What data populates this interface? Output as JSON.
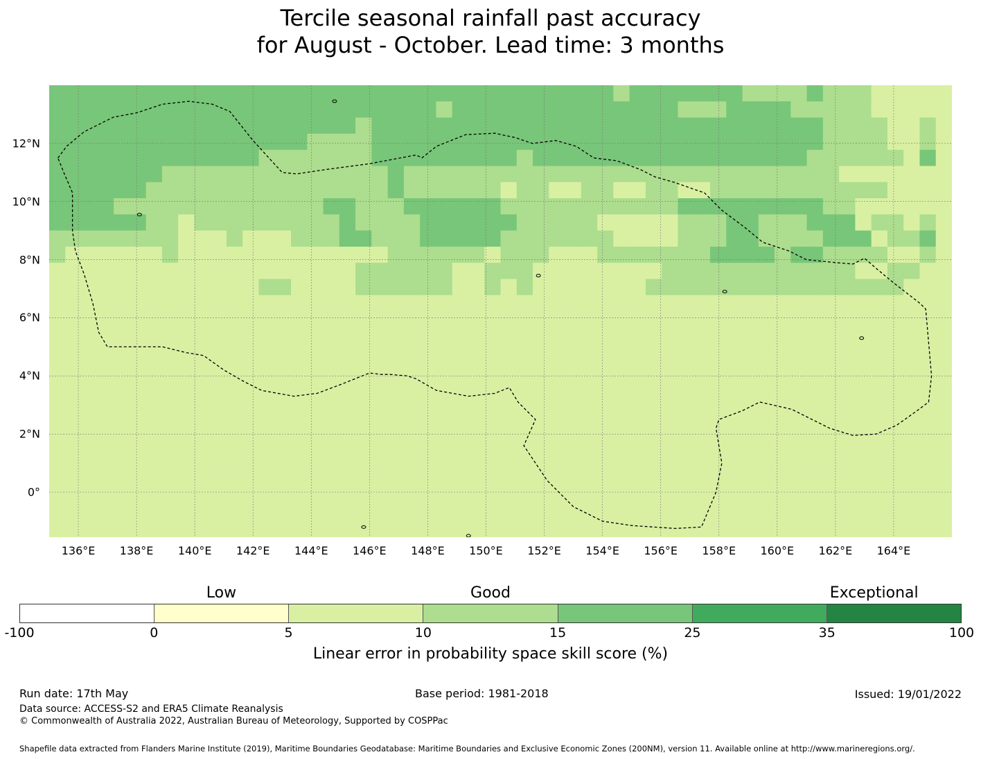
{
  "title": {
    "line1": "Tercile seasonal rainfall past accuracy",
    "line2": "for August - October. Lead time: 3 months"
  },
  "map": {
    "lon_labels": [
      "136°E",
      "138°E",
      "140°E",
      "142°E",
      "144°E",
      "146°E",
      "148°E",
      "150°E",
      "152°E",
      "154°E",
      "156°E",
      "158°E",
      "160°E",
      "162°E",
      "164°E"
    ],
    "lat_labels": [
      "12°N",
      "10°N",
      "8°N",
      "6°N",
      "4°N",
      "2°N",
      "0°"
    ],
    "lon_values": [
      136,
      138,
      140,
      142,
      144,
      146,
      148,
      150,
      152,
      154,
      156,
      158,
      160,
      162,
      164
    ],
    "lat_values": [
      12,
      10,
      8,
      6,
      4,
      2,
      0
    ],
    "extent": {
      "lon_min": 135.0,
      "lon_max": 166.0,
      "lat_min": -1.55,
      "lat_max": 14.0
    },
    "grid_rows": [
      "44444444444444444444444444444444444344444443333433322222",
      "44444444444444444444444434444444444444433344443333322222",
      "44444444444444444443444444444444444444444444444433332232",
      "44444444444444443333444444444444444444444444444433332232",
      "44444444444443333333444444444344444444444444444333333242",
      "44444443333333333333343333333333333333333333333332222222",
      "44444433333333333333343333332332233223322333333333332222",
      "44443333333333333443334444443333333333344444444433222222",
      "44444433233333333343333444444333332222233344333444233232",
      "33333333222322233344333444443333333222233344333344423342",
      "32222223222222222222233333323332223333333444434433332232",
      "22222222222222222223333332233322222222333333333333223322",
      "22222222222223322223333332232322222223333333333333333222",
      "22222222222222222222222222222222222222222222222222222222",
      "22222222222222222222222222222222222222222222222222222222",
      "22222222222222222222222222222222222222222222222222222222",
      "22222222222222222222222222222222222222222222222222222222",
      "22222222222222222222222222222222222222222222222222222222",
      "22222222222222222222222222222222222222222222222222222222",
      "22222222222222222222222222222222222222222222222222222222",
      "22222222222222222222222222222222222222222222222222222222",
      "22222222222222222222222222222222222222222222222222222222",
      "22222222222222222222222222222222222222222222222222222222",
      "22222222222222222222222222222222222222222222222222222222",
      "22222222222222222222222222222222222222222222222222222222",
      "22222222222222222222222222222222222222222222222222222222",
      "22222222222222222222222222222222222222222222222222222222",
      "22222222222222222222222222222222222222222222222222222222"
    ]
  },
  "colorbar": {
    "colors": [
      "#ffffff",
      "#ffffcc",
      "#d9f0a3",
      "#addd8e",
      "#78c679",
      "#41ab5d",
      "#238443"
    ],
    "tick_labels": [
      "-100",
      "0",
      "5",
      "10",
      "15",
      "25",
      "35",
      "100"
    ],
    "categories": [
      {
        "label": "Low",
        "at": 1.5
      },
      {
        "label": "Good",
        "at": 3.5
      },
      {
        "label": "Exceptional",
        "at": 6.35
      }
    ],
    "label": "Linear error in probability space skill score (%)"
  },
  "footer": {
    "run_date": "Run date: 17th May",
    "base_period": "Base period: 1981-2018",
    "issued": "Issued: 19/01/2022",
    "data_source": "Data source: ACCESS-S2 and ERA5 Climate Reanalysis",
    "copyright": "© Commonwealth of Australia 2022, Australian Bureau of Meteorology, Supported by COSPPac",
    "shapefile": "Shapefile data extracted from Flanders Marine Institute (2019), Maritime Boundaries Geodatabase: Maritime Boundaries and Exclusive Economic Zones (200NM), version 11. Available online at http://www.marineregions.org/."
  },
  "eez_boundary": [
    [
      135.3,
      11.5
    ],
    [
      135.6,
      11.9
    ],
    [
      136.2,
      12.4
    ],
    [
      137.2,
      12.9
    ],
    [
      138.0,
      13.05
    ],
    [
      138.9,
      13.35
    ],
    [
      139.8,
      13.45
    ],
    [
      140.6,
      13.35
    ],
    [
      141.2,
      13.1
    ],
    [
      142.0,
      12.1
    ],
    [
      143.0,
      11.0
    ],
    [
      143.5,
      10.95
    ],
    [
      144.5,
      11.1
    ],
    [
      146.0,
      11.3
    ],
    [
      147.6,
      11.6
    ],
    [
      147.8,
      11.5
    ],
    [
      148.3,
      11.9
    ],
    [
      149.3,
      12.3
    ],
    [
      150.3,
      12.35
    ],
    [
      151.0,
      12.2
    ],
    [
      151.6,
      12.0
    ],
    [
      152.4,
      12.1
    ],
    [
      153.1,
      11.9
    ],
    [
      153.7,
      11.5
    ],
    [
      154.5,
      11.4
    ],
    [
      155.3,
      11.1
    ],
    [
      155.8,
      10.85
    ],
    [
      156.5,
      10.65
    ],
    [
      157.2,
      10.4
    ],
    [
      157.5,
      10.3
    ],
    [
      158.1,
      9.7
    ],
    [
      158.9,
      9.1
    ],
    [
      159.5,
      8.6
    ],
    [
      160.4,
      8.3
    ],
    [
      161.0,
      8.0
    ],
    [
      162.0,
      7.9
    ],
    [
      162.6,
      7.85
    ],
    [
      163.0,
      8.05
    ],
    [
      163.4,
      7.7
    ],
    [
      164.0,
      7.2
    ],
    [
      164.9,
      6.5
    ],
    [
      165.1,
      6.3
    ],
    [
      165.3,
      4.0
    ],
    [
      165.2,
      3.1
    ],
    [
      164.8,
      2.8
    ],
    [
      164.1,
      2.3
    ],
    [
      163.4,
      2.0
    ],
    [
      162.6,
      1.95
    ],
    [
      161.8,
      2.2
    ],
    [
      161.0,
      2.6
    ],
    [
      160.5,
      2.85
    ],
    [
      159.4,
      3.1
    ],
    [
      158.8,
      2.8
    ],
    [
      158.0,
      2.5
    ],
    [
      157.9,
      2.2
    ],
    [
      158.1,
      1.0
    ],
    [
      157.9,
      0.0
    ],
    [
      157.4,
      -1.2
    ],
    [
      156.5,
      -1.25
    ],
    [
      155.0,
      -1.15
    ],
    [
      154.0,
      -1.0
    ],
    [
      153.0,
      -0.5
    ],
    [
      152.1,
      0.4
    ],
    [
      151.3,
      1.6
    ],
    [
      151.7,
      2.5
    ],
    [
      151.1,
      3.1
    ],
    [
      150.8,
      3.6
    ],
    [
      150.3,
      3.4
    ],
    [
      149.4,
      3.3
    ],
    [
      148.3,
      3.5
    ],
    [
      147.6,
      3.9
    ],
    [
      147.3,
      4.0
    ],
    [
      146.7,
      4.05
    ],
    [
      146.4,
      4.05
    ],
    [
      146.0,
      4.1
    ],
    [
      145.0,
      3.7
    ],
    [
      144.2,
      3.4
    ],
    [
      143.4,
      3.3
    ],
    [
      142.3,
      3.5
    ],
    [
      141.7,
      3.8
    ],
    [
      141.0,
      4.2
    ],
    [
      140.3,
      4.7
    ],
    [
      139.7,
      4.8
    ],
    [
      138.9,
      5.0
    ],
    [
      138.1,
      5.0
    ],
    [
      137.0,
      5.0
    ],
    [
      136.7,
      5.5
    ],
    [
      136.5,
      6.5
    ],
    [
      136.2,
      7.5
    ],
    [
      135.9,
      8.3
    ],
    [
      135.8,
      9.0
    ],
    [
      135.8,
      10.3
    ],
    [
      135.5,
      11.0
    ],
    [
      135.3,
      11.5
    ]
  ]
}
